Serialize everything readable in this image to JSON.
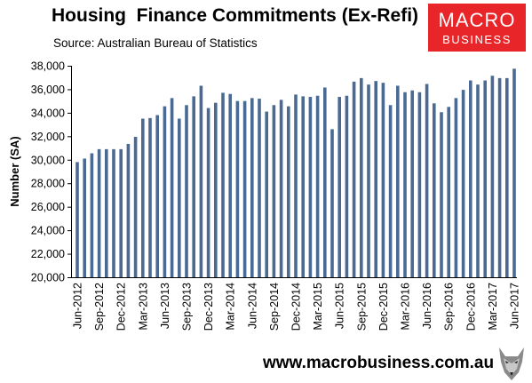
{
  "header": {
    "title": "Housing  Finance Commitments (Ex-Refi)",
    "subtitle": "Source: Australian Bureau of Statistics"
  },
  "logo": {
    "line1": "MACRO",
    "line2": "BUSINESS",
    "color": "#e8262a"
  },
  "footer": {
    "website": "www.macrobusiness.com.au",
    "mascot_icon": "wolf-head-icon"
  },
  "chart_data": {
    "type": "bar",
    "title": "Housing  Finance Commitments (Ex-Refi)",
    "subtitle": "Source: Australian Bureau of Statistics",
    "xlabel": "",
    "ylabel": "Number (SA)",
    "ylim": [
      20000,
      38000
    ],
    "yticks": [
      "20,000",
      "22,000",
      "24,000",
      "26,000",
      "28,000",
      "30,000",
      "32,000",
      "34,000",
      "36,000",
      "38,000"
    ],
    "ytick_values": [
      20000,
      22000,
      24000,
      26000,
      28000,
      30000,
      32000,
      34000,
      36000,
      38000
    ],
    "grid": false,
    "legend": "none",
    "bar_color": "#4a6a94",
    "categories": [
      "Jun-2012",
      "Jul-2012",
      "Aug-2012",
      "Sep-2012",
      "Oct-2012",
      "Nov-2012",
      "Dec-2012",
      "Jan-2013",
      "Feb-2013",
      "Mar-2013",
      "Apr-2013",
      "May-2013",
      "Jun-2013",
      "Jul-2013",
      "Aug-2013",
      "Sep-2013",
      "Oct-2013",
      "Nov-2013",
      "Dec-2013",
      "Jan-2014",
      "Feb-2014",
      "Mar-2014",
      "Apr-2014",
      "May-2014",
      "Jun-2014",
      "Jul-2014",
      "Aug-2014",
      "Sep-2014",
      "Oct-2014",
      "Nov-2014",
      "Dec-2014",
      "Jan-2015",
      "Feb-2015",
      "Mar-2015",
      "Apr-2015",
      "May-2015",
      "Jun-2015",
      "Jul-2015",
      "Aug-2015",
      "Sep-2015",
      "Oct-2015",
      "Nov-2015",
      "Dec-2015",
      "Jan-2016",
      "Feb-2016",
      "Mar-2016",
      "Apr-2016",
      "May-2016",
      "Jun-2016",
      "Jul-2016",
      "Aug-2016",
      "Sep-2016",
      "Oct-2016",
      "Nov-2016",
      "Dec-2016",
      "Jan-2017",
      "Feb-2017",
      "Mar-2017",
      "Apr-2017",
      "May-2017",
      "Jun-2017"
    ],
    "xtick_labels": [
      "Jun-2012",
      "Sep-2012",
      "Dec-2012",
      "Mar-2013",
      "Jun-2013",
      "Sep-2013",
      "Dec-2013",
      "Mar-2014",
      "Jun-2014",
      "Sep-2014",
      "Dec-2014",
      "Mar-2015",
      "Jun-2015",
      "Sep-2015",
      "Dec-2015",
      "Mar-2016",
      "Jun-2016",
      "Sep-2016",
      "Dec-2016",
      "Mar-2017",
      "Jun-2017"
    ],
    "values": [
      29800,
      30100,
      30550,
      30900,
      30900,
      30900,
      30900,
      31350,
      31950,
      33500,
      33550,
      33800,
      34550,
      35250,
      33500,
      34650,
      35400,
      36300,
      34400,
      34850,
      35700,
      35600,
      35000,
      35000,
      35250,
      35200,
      34100,
      34650,
      35100,
      34550,
      35550,
      35400,
      35350,
      35450,
      36150,
      32600,
      35350,
      35450,
      36650,
      36950,
      36400,
      36700,
      36550,
      34650,
      36300,
      35750,
      35900,
      35750,
      36450,
      34800,
      34050,
      34500,
      35250,
      35950,
      36750,
      36400,
      36750,
      37150,
      36950,
      36950,
      37750
    ]
  }
}
